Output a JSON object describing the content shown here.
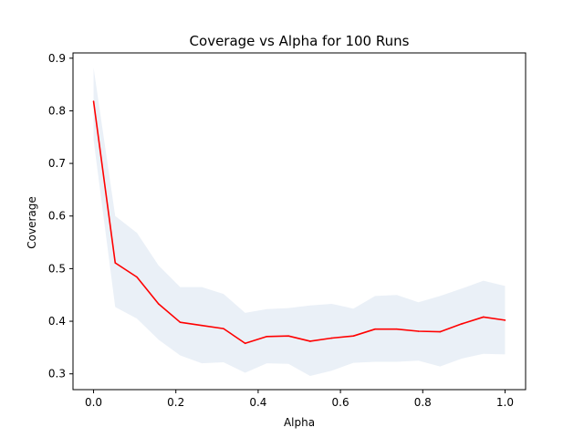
{
  "chart_data": {
    "type": "line",
    "title": "Coverage vs Alpha for 100 Runs",
    "xlabel": "Alpha",
    "ylabel": "Coverage",
    "xlim": [
      -0.05,
      1.05
    ],
    "ylim": [
      0.27,
      0.91
    ],
    "xticks": [
      0.0,
      0.2,
      0.4,
      0.6,
      0.8,
      1.0
    ],
    "xtick_labels": [
      "0.0",
      "0.2",
      "0.4",
      "0.6",
      "0.8",
      "1.0"
    ],
    "yticks": [
      0.3,
      0.4,
      0.5,
      0.6,
      0.7,
      0.8,
      0.9
    ],
    "ytick_labels": [
      "0.3",
      "0.4",
      "0.5",
      "0.6",
      "0.7",
      "0.8",
      "0.9"
    ],
    "grid": false,
    "legend": "none",
    "x": [
      0.0,
      0.0526,
      0.1053,
      0.1579,
      0.2105,
      0.2632,
      0.3158,
      0.3684,
      0.4211,
      0.4737,
      0.5263,
      0.5789,
      0.6316,
      0.6842,
      0.7368,
      0.7895,
      0.8421,
      0.8947,
      0.9474,
      1.0
    ],
    "series": [
      {
        "type": "line",
        "color": "#ff0000",
        "values": [
          0.818,
          0.511,
          0.484,
          0.433,
          0.398,
          0.392,
          0.386,
          0.358,
          0.371,
          0.372,
          0.362,
          0.368,
          0.372,
          0.385,
          0.385,
          0.381,
          0.38,
          0.395,
          0.408,
          0.402
        ]
      },
      {
        "type": "band",
        "color": "#dce6f2",
        "lower": [
          0.745,
          0.427,
          0.405,
          0.365,
          0.335,
          0.32,
          0.322,
          0.302,
          0.32,
          0.319,
          0.296,
          0.306,
          0.321,
          0.323,
          0.323,
          0.325,
          0.314,
          0.329,
          0.338,
          0.337
        ],
        "upper": [
          0.882,
          0.6,
          0.568,
          0.506,
          0.465,
          0.465,
          0.452,
          0.416,
          0.423,
          0.425,
          0.43,
          0.433,
          0.424,
          0.448,
          0.45,
          0.436,
          0.448,
          0.462,
          0.477,
          0.467
        ]
      }
    ]
  }
}
